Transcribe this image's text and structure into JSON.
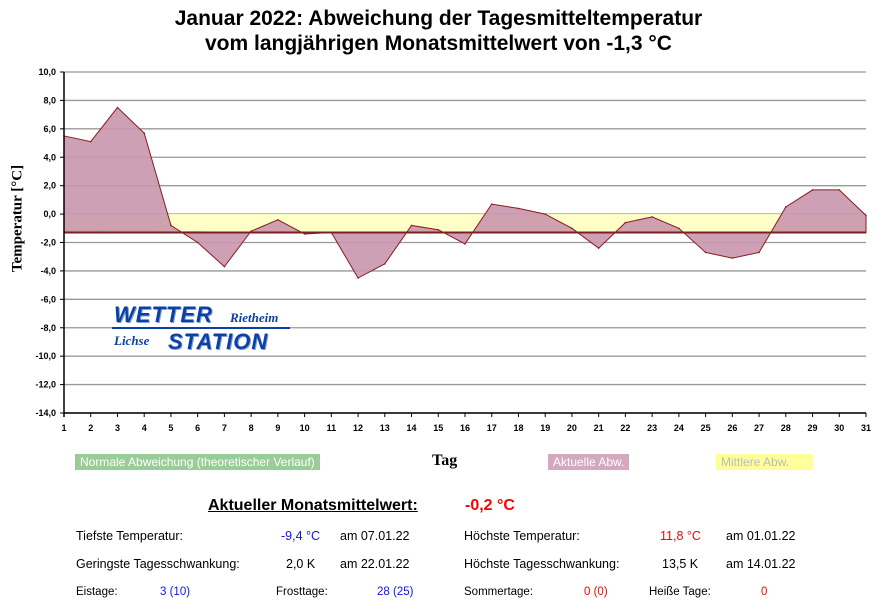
{
  "title_line1": "Januar 2022: Abweichung der Tagesmitteltemperatur",
  "title_line2": "vom langjährigen Monatsmittelwert von -1,3 °C",
  "chart_data": {
    "type": "area",
    "title": "Januar 2022: Abweichung der Tagesmitteltemperatur vom langjährigen Monatsmittelwert von -1,3 °C",
    "xlabel": "Tag",
    "ylabel": "Temperatur [°C]",
    "ylim": [
      -14,
      10
    ],
    "xlim": [
      1,
      31
    ],
    "grid": true,
    "y_ticks": [
      "10,0",
      "8,0",
      "6,0",
      "4,0",
      "2,0",
      "0,0",
      "-2,0",
      "-4,0",
      "-6,0",
      "-8,0",
      "-10,0",
      "-12,0",
      "-14,0"
    ],
    "x": [
      1,
      2,
      3,
      4,
      5,
      6,
      7,
      8,
      9,
      10,
      11,
      12,
      13,
      14,
      15,
      16,
      17,
      18,
      19,
      20,
      21,
      22,
      23,
      24,
      25,
      26,
      27,
      28,
      29,
      30,
      31
    ],
    "baseline": -1.3,
    "series": [
      {
        "name": "Aktuelle Abw.",
        "color": "#c996ad",
        "values": [
          5.5,
          5.1,
          7.5,
          5.7,
          -0.8,
          -2.0,
          -3.7,
          -1.2,
          -0.4,
          -1.4,
          -1.3,
          -4.5,
          -3.5,
          -0.8,
          -1.1,
          -2.1,
          0.7,
          0.4,
          0.0,
          -1.0,
          -2.4,
          -0.6,
          -0.2,
          -1.0,
          -2.7,
          -3.1,
          -2.7,
          0.5,
          1.7,
          1.7,
          -0.1
        ]
      },
      {
        "name": "Mittlere Abw.",
        "color": "#ffffc8",
        "values_from_to": [
          0.0,
          -1.3
        ]
      },
      {
        "name": "Normale Abweichung (theoretischer Verlauf)",
        "color": "#99cc99",
        "values": [
          -1.1,
          -1.1,
          -1.15,
          -1.15,
          -1.2,
          -1.2,
          -1.25,
          -1.3,
          -1.3,
          -1.3,
          -1.3,
          -1.3,
          -1.3,
          -1.3,
          -1.3,
          -1.3,
          -1.3,
          -1.3,
          -1.3,
          -1.3,
          -1.3,
          -1.3,
          -1.3,
          -1.3,
          -1.35,
          -1.35,
          -1.35,
          -1.35,
          -1.3,
          -1.3,
          -1.3
        ]
      }
    ],
    "legend": [
      "Normale Abweichung (theoretischer Verlauf)",
      "Aktuelle Abw.",
      "Mittlere Abw."
    ],
    "legend_placement": "bottom"
  },
  "logo": {
    "word1": "WETTER",
    "word2": "STATION",
    "place1": "Rietheim",
    "place2": "Lichse"
  },
  "stats": {
    "monthly_mean_label": "Aktueller Monatsmittelwert:",
    "monthly_mean_value": "-0,2 °C",
    "min_temp_label": "Tiefste Temperatur:",
    "min_temp_value": "-9,4 °C",
    "min_temp_date": "am 07.01.22",
    "max_temp_label": "Höchste Temperatur:",
    "max_temp_value": "11,8 °C",
    "max_temp_date": "am 01.01.22",
    "min_range_label": "Geringste Tagesschwankung:",
    "min_range_value": "2,0 K",
    "min_range_date": "am 22.01.22",
    "max_range_label": "Höchste Tagesschwankung:",
    "max_range_value": "13,5 K",
    "max_range_date": "am 14.01.22",
    "ice_days_label": "Eistage:",
    "ice_days_value": "3 (10)",
    "frost_days_label": "Frosttage:",
    "frost_days_value": "28 (25)",
    "summer_days_label": "Sommertage:",
    "summer_days_value": "0 (0)",
    "hot_days_label": "Heiße Tage:",
    "hot_days_value": "0"
  }
}
